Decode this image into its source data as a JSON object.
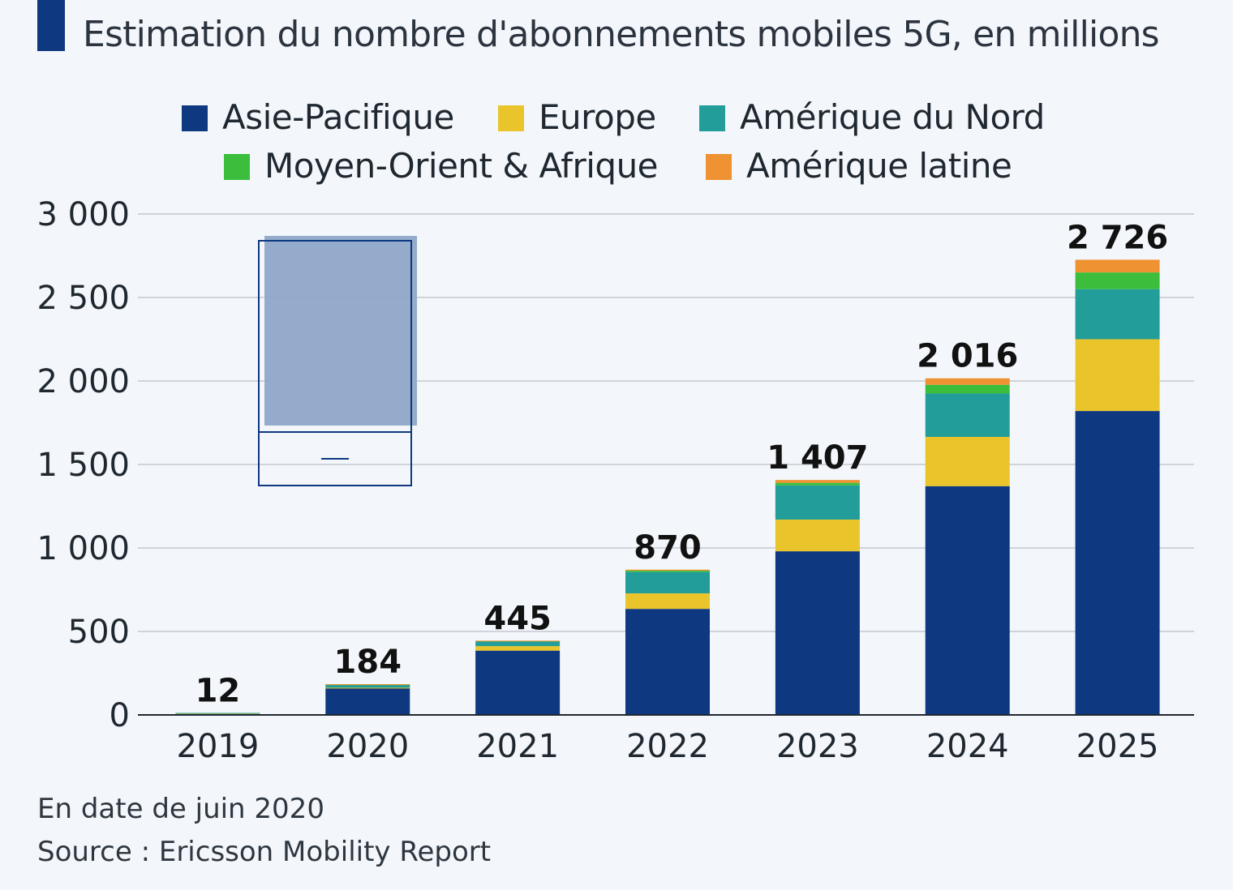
{
  "title": "Estimation du nombre d'abonnements mobiles 5G, en millions",
  "footnote": "En date de juin 2020",
  "source": "Source : Ericsson Mobility Report",
  "chart_data": {
    "type": "bar",
    "stacked": true,
    "title": "Estimation du nombre d'abonnements mobiles 5G, en millions",
    "xlabel": "",
    "ylabel": "",
    "ylim": [
      0,
      3000
    ],
    "yticks": [
      0,
      500,
      1000,
      1500,
      2000,
      2500,
      3000
    ],
    "ytick_labels": [
      "0",
      "500",
      "1 000",
      "1 500",
      "2 000",
      "2 500",
      "3 000"
    ],
    "categories": [
      "2019",
      "2020",
      "2021",
      "2022",
      "2023",
      "2024",
      "2025"
    ],
    "totals": [
      "12",
      "184",
      "445",
      "870",
      "1 407",
      "2 016",
      "2 726"
    ],
    "total_values": [
      12,
      184,
      445,
      870,
      1407,
      2016,
      2726
    ],
    "legend_position": "top-center",
    "grid": true,
    "series": [
      {
        "name": "Asie-Pacifique",
        "color": "#0e3880",
        "values": [
          8,
          160,
          385,
          635,
          980,
          1370,
          1820
        ]
      },
      {
        "name": "Europe",
        "color": "#e9c42b",
        "values": [
          1,
          3,
          27,
          93,
          190,
          295,
          430
        ]
      },
      {
        "name": "Amérique du Nord",
        "color": "#229d9a",
        "values": [
          3,
          19,
          30,
          128,
          205,
          260,
          300
        ]
      },
      {
        "name": "Moyen-Orient & Afrique",
        "color": "#3cbe3c",
        "values": [
          0,
          1,
          2,
          8,
          15,
          52,
          100
        ]
      },
      {
        "name": "Amérique latine",
        "color": "#ef9231",
        "values": [
          0,
          1,
          1,
          6,
          17,
          39,
          76
        ]
      }
    ]
  }
}
